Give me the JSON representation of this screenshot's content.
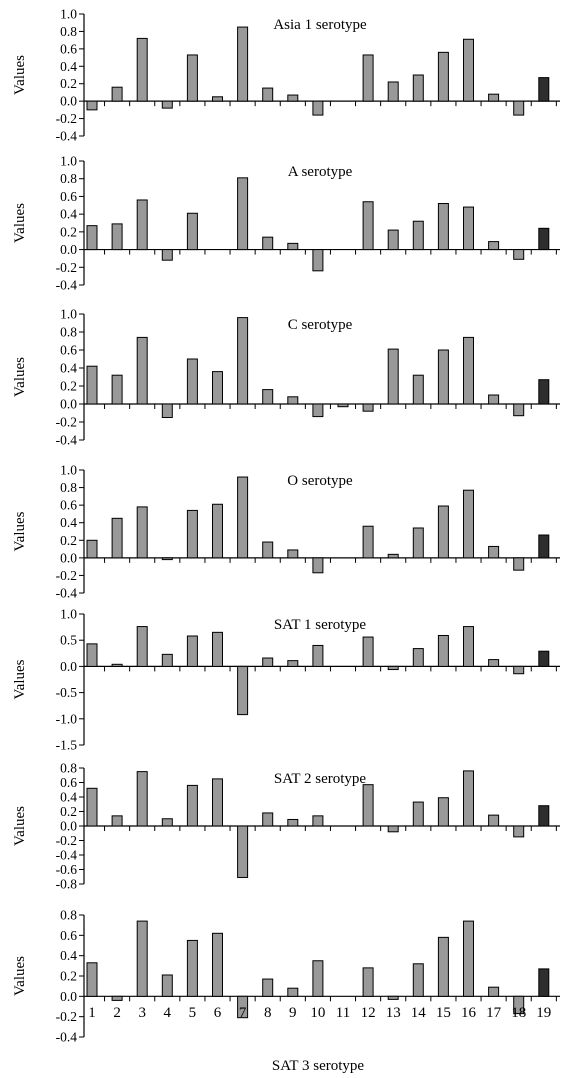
{
  "colors": {
    "bar": "#999999",
    "bar_highlight": "#2e2e2e",
    "axis": "#000000"
  },
  "chart_data": [
    {
      "type": "bar",
      "title": "Asia 1 serotype",
      "ylabel": "Values",
      "xlabel": "",
      "ylim": [
        -0.4,
        1.0
      ],
      "yticks": [
        "1.0",
        "0.8",
        "0.6",
        "0.4",
        "0.2",
        "0.0",
        "-0.2",
        "-0.4"
      ],
      "categories": [
        "1",
        "2",
        "3",
        "4",
        "5",
        "6",
        "7",
        "8",
        "9",
        "10",
        "11",
        "12",
        "13",
        "14",
        "15",
        "16",
        "17",
        "18",
        "19"
      ],
      "values": [
        -0.1,
        0.16,
        0.72,
        -0.08,
        0.53,
        0.05,
        0.85,
        0.15,
        0.07,
        -0.16,
        0,
        0.53,
        0.22,
        0.3,
        0.56,
        0.71,
        0.08,
        -0.16,
        0.27
      ],
      "show_x_labels": false
    },
    {
      "type": "bar",
      "title": "A serotype",
      "ylabel": "Values",
      "xlabel": "",
      "ylim": [
        -0.4,
        1.0
      ],
      "yticks": [
        "1.0",
        "0.8",
        "0.6",
        "0.4",
        "0.2",
        "0.0",
        "-0.2",
        "-0.4"
      ],
      "categories": [
        "1",
        "2",
        "3",
        "4",
        "5",
        "6",
        "7",
        "8",
        "9",
        "10",
        "11",
        "12",
        "13",
        "14",
        "15",
        "16",
        "17",
        "18",
        "19"
      ],
      "values": [
        0.27,
        0.29,
        0.56,
        -0.12,
        0.41,
        0,
        0.81,
        0.14,
        0.07,
        -0.24,
        0,
        0.54,
        0.22,
        0.32,
        0.52,
        0.48,
        0.09,
        -0.11,
        0.24
      ],
      "show_x_labels": false
    },
    {
      "type": "bar",
      "title": "C serotype",
      "ylabel": "Values",
      "xlabel": "",
      "ylim": [
        -0.4,
        1.0
      ],
      "yticks": [
        "1.0",
        "0.8",
        "0.6",
        "0.4",
        "0.2",
        "0.0",
        "-0.2",
        "-0.4"
      ],
      "categories": [
        "1",
        "2",
        "3",
        "4",
        "5",
        "6",
        "7",
        "8",
        "9",
        "10",
        "11",
        "12",
        "13",
        "14",
        "15",
        "16",
        "17",
        "18",
        "19"
      ],
      "values": [
        0.42,
        0.32,
        0.74,
        -0.15,
        0.5,
        0.36,
        0.96,
        0.16,
        0.08,
        -0.14,
        -0.03,
        -0.08,
        0.61,
        0.32,
        0.6,
        0.74,
        0.1,
        -0.13,
        0.27
      ],
      "show_x_labels": false
    },
    {
      "type": "bar",
      "title": "O serotype",
      "ylabel": "Values",
      "xlabel": "",
      "ylim": [
        -0.4,
        1.0
      ],
      "yticks": [
        "1.0",
        "0.8",
        "0.6",
        "0.4",
        "0.2",
        "0.0",
        "-0.2",
        "-0.4"
      ],
      "categories": [
        "1",
        "2",
        "3",
        "4",
        "5",
        "6",
        "7",
        "8",
        "9",
        "10",
        "11",
        "12",
        "13",
        "14",
        "15",
        "16",
        "17",
        "18",
        "19"
      ],
      "values": [
        0.2,
        0.45,
        0.58,
        -0.02,
        0.54,
        0.61,
        0.92,
        0.18,
        0.09,
        -0.17,
        0,
        0.36,
        0.04,
        0.34,
        0.59,
        0.77,
        0.13,
        -0.14,
        0.26
      ],
      "show_x_labels": false
    },
    {
      "type": "bar",
      "title": "SAT 1 serotype",
      "ylabel": "Values",
      "xlabel": "",
      "ylim": [
        -1.5,
        1.0
      ],
      "yticks": [
        "1.0",
        "0.5",
        "0.0",
        "-0.5",
        "-1.0",
        "-1.5"
      ],
      "categories": [
        "1",
        "2",
        "3",
        "4",
        "5",
        "6",
        "7",
        "8",
        "9",
        "10",
        "11",
        "12",
        "13",
        "14",
        "15",
        "16",
        "17",
        "18",
        "19"
      ],
      "values": [
        0.43,
        0.04,
        0.76,
        0.23,
        0.58,
        0.65,
        -0.92,
        0.16,
        0.11,
        0.4,
        0,
        0.56,
        -0.06,
        0.34,
        0.59,
        0.76,
        0.13,
        -0.14,
        0.29
      ],
      "show_x_labels": false
    },
    {
      "type": "bar",
      "title": "SAT 2 serotype",
      "ylabel": "Values",
      "xlabel": "",
      "ylim": [
        -0.8,
        0.8
      ],
      "yticks": [
        "0.8",
        "0.6",
        "0.4",
        "0.2",
        "0.0",
        "-0.2",
        "-0.4",
        "-0.6",
        "-0.8"
      ],
      "categories": [
        "1",
        "2",
        "3",
        "4",
        "5",
        "6",
        "7",
        "8",
        "9",
        "10",
        "11",
        "12",
        "13",
        "14",
        "15",
        "16",
        "17",
        "18",
        "19"
      ],
      "values": [
        0.52,
        0.14,
        0.75,
        0.1,
        0.56,
        0.65,
        -0.71,
        0.18,
        0.09,
        0.14,
        0,
        0.57,
        -0.08,
        0.33,
        0.39,
        0.76,
        0.15,
        -0.15,
        0.28
      ],
      "show_x_labels": false
    },
    {
      "type": "bar",
      "title": "",
      "ylabel": "Values",
      "xlabel": "SAT 3 serotype",
      "ylim": [
        -0.4,
        0.8
      ],
      "yticks": [
        "0.8",
        "0.6",
        "0.4",
        "0.2",
        "0.0",
        "-0.2",
        "-0.4"
      ],
      "categories": [
        "1",
        "2",
        "3",
        "4",
        "5",
        "6",
        "7",
        "8",
        "9",
        "10",
        "11",
        "12",
        "13",
        "14",
        "15",
        "16",
        "17",
        "18",
        "19"
      ],
      "values": [
        0.33,
        -0.04,
        0.74,
        0.21,
        0.55,
        0.62,
        -0.21,
        0.17,
        0.08,
        0.35,
        0,
        0.28,
        -0.03,
        0.32,
        0.58,
        0.74,
        0.09,
        -0.17,
        0.27
      ],
      "show_x_labels": true
    }
  ]
}
